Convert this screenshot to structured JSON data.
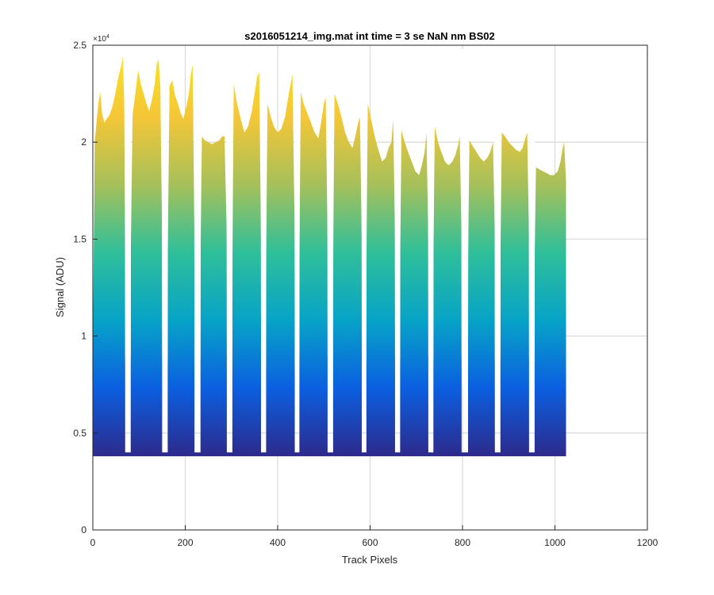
{
  "chart_data": {
    "type": "area",
    "title": "s2016051214_img.mat int time = 3 se  NaN nm BS02",
    "xlabel": "Track Pixels",
    "ylabel": "Signal (ADU)",
    "y_exponent_label": "×10",
    "y_exponent_power": "4",
    "xlim": [
      0,
      1200
    ],
    "ylim": [
      0,
      25000
    ],
    "xticks": [
      0,
      200,
      400,
      600,
      800,
      1000,
      1200
    ],
    "xtick_labels": [
      "0",
      "200",
      "400",
      "600",
      "800",
      "1000",
      "1200"
    ],
    "yticks": [
      0,
      5000,
      10000,
      15000,
      20000,
      25000
    ],
    "ytick_labels": [
      "0",
      "0.5",
      "1",
      "1.5",
      "2",
      "2.5"
    ],
    "grid": true,
    "colormap": [
      "#2d2a8c",
      "#0b5fe0",
      "#07a3c7",
      "#2fbf9a",
      "#a6c05a",
      "#f5c637",
      "#f9e51e"
    ],
    "baseline": 3800,
    "data_x_range": [
      0,
      1024
    ],
    "gap_floor": 3900,
    "segments": [
      {
        "x": [
          0,
          4,
          8,
          12,
          16,
          20,
          25,
          30,
          36,
          42,
          48,
          54,
          58,
          62,
          65,
          68,
          70
        ],
        "y": [
          9000,
          20000,
          21000,
          22000,
          22600,
          21500,
          21000,
          21200,
          21400,
          21800,
          22400,
          23200,
          23600,
          24000,
          24400,
          22000,
          14000
        ]
      },
      {
        "x": [
          82,
          86,
          92,
          98,
          104,
          110,
          116,
          122,
          128,
          134,
          138,
          142,
          146,
          150
        ],
        "y": [
          14000,
          21400,
          22500,
          23700,
          23000,
          22500,
          22000,
          21600,
          22200,
          23000,
          24000,
          24300,
          23000,
          15000
        ]
      },
      {
        "x": [
          162,
          166,
          172,
          178,
          184,
          190,
          196,
          202,
          208,
          212,
          216,
          220
        ],
        "y": [
          14000,
          22900,
          23200,
          22400,
          22000,
          21500,
          21200,
          21800,
          22500,
          23500,
          24000,
          15000
        ]
      },
      {
        "x": [
          233,
          236,
          242,
          250,
          258,
          266,
          274,
          280,
          285,
          290
        ],
        "y": [
          14000,
          20300,
          20100,
          20000,
          19900,
          20000,
          20100,
          20300,
          20300,
          15000
        ]
      },
      {
        "x": [
          302,
          305,
          312,
          320,
          328,
          336,
          344,
          350,
          356,
          360,
          364
        ],
        "y": [
          14000,
          23000,
          22000,
          21200,
          20500,
          20800,
          21600,
          22500,
          23400,
          23600,
          15000
        ]
      },
      {
        "x": [
          375,
          378,
          385,
          392,
          400,
          408,
          416,
          422,
          428,
          432,
          437
        ],
        "y": [
          14000,
          22000,
          21300,
          20800,
          20500,
          20700,
          21300,
          22200,
          23000,
          23500,
          15000
        ]
      },
      {
        "x": [
          447,
          450,
          456,
          464,
          472,
          480,
          488,
          494,
          500,
          504,
          508
        ],
        "y": [
          14000,
          22600,
          22000,
          21500,
          21000,
          20500,
          20200,
          21000,
          22000,
          22300,
          15000
        ]
      },
      {
        "x": [
          520,
          523,
          530,
          538,
          546,
          554,
          562,
          568,
          574,
          578,
          582
        ],
        "y": [
          14000,
          22500,
          22000,
          21300,
          20500,
          20000,
          19700,
          20300,
          21000,
          21300,
          15000
        ]
      },
      {
        "x": [
          592,
          595,
          602,
          610,
          618,
          626,
          634,
          640,
          646,
          650,
          654
        ],
        "y": [
          14000,
          22000,
          21200,
          20300,
          19600,
          19000,
          19200,
          19700,
          20000,
          21200,
          15000
        ]
      },
      {
        "x": [
          665,
          668,
          675,
          682,
          690,
          698,
          706,
          712,
          718,
          722,
          726
        ],
        "y": [
          14000,
          20600,
          20000,
          19500,
          19000,
          18500,
          18300,
          18800,
          19500,
          20500,
          15000
        ]
      },
      {
        "x": [
          737,
          740,
          747,
          754,
          762,
          770,
          778,
          784,
          790,
          794,
          798
        ],
        "y": [
          14000,
          20800,
          20000,
          19500,
          19000,
          18800,
          19000,
          19300,
          19800,
          20300,
          15000
        ]
      },
      {
        "x": [
          812,
          815,
          822,
          830,
          838,
          846,
          854,
          860,
          866,
          870
        ],
        "y": [
          14000,
          20100,
          19800,
          19500,
          19200,
          19000,
          19200,
          19500,
          20000,
          15000
        ]
      },
      {
        "x": [
          882,
          885,
          892,
          900,
          908,
          916,
          924,
          930,
          936,
          940,
          944
        ],
        "y": [
          14000,
          20500,
          20300,
          20000,
          19800,
          19600,
          19500,
          19700,
          20200,
          20500,
          15000
        ]
      },
      {
        "x": [
          956,
          959,
          966,
          974,
          982,
          990,
          998,
          1006,
          1012,
          1016,
          1020,
          1024
        ],
        "y": [
          14000,
          18700,
          18600,
          18500,
          18400,
          18300,
          18300,
          18500,
          19000,
          19600,
          20000,
          18000
        ]
      }
    ]
  }
}
